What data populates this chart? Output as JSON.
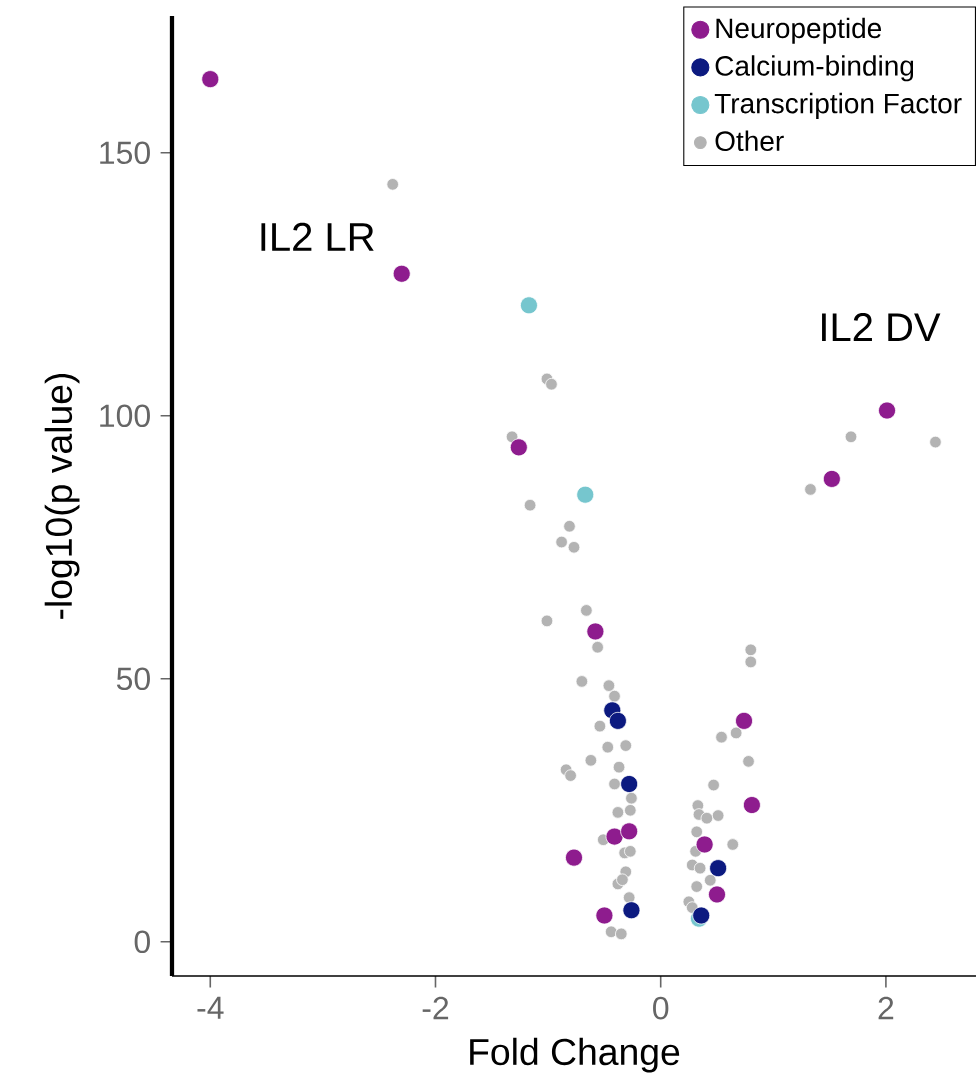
{
  "chart_data": {
    "type": "scatter",
    "xlabel": "Fold Change",
    "ylabel": "-log10(p value)",
    "xlim": [
      -4.34,
      2.8
    ],
    "ylim": [
      -6.5,
      176
    ],
    "xticks": [
      -4,
      -2,
      0,
      2
    ],
    "yticks": [
      0,
      50,
      100,
      150
    ],
    "grid": false,
    "legend": "top right",
    "marker": "circle",
    "annotations": [
      "IL2 LR",
      "IL2 DV"
    ],
    "series": [
      {
        "name": "Neuropeptide",
        "color": "#8e1c8e",
        "x": [
          -4.0,
          -2.3,
          -1.26,
          -0.58,
          0.74,
          0.81,
          -0.41,
          -0.28,
          -0.77,
          -0.5,
          0.39,
          0.5,
          2.01,
          1.52
        ],
        "values": [
          164,
          127,
          94,
          59,
          42,
          26,
          20,
          21,
          16,
          5,
          18.5,
          9,
          101,
          88
        ]
      },
      {
        "name": "Calcium-binding",
        "color": "#0c1a80",
        "x": [
          -0.43,
          -0.38,
          -0.28,
          -0.26,
          0.51,
          0.36
        ],
        "values": [
          44,
          42,
          30,
          6,
          14,
          5
        ]
      },
      {
        "name": "Transcription Factor",
        "color": "#76c6ce",
        "x": [
          -1.17,
          -0.67,
          0.34
        ],
        "values": [
          121,
          85,
          4.4
        ]
      },
      {
        "name": "Other",
        "color": "#b3b3b3",
        "x": [
          -2.38,
          -1.01,
          -0.97,
          -1.32,
          -1.16,
          -0.81,
          -0.88,
          -0.77,
          -0.66,
          -1.01,
          -0.56,
          -0.7,
          -0.46,
          -0.41,
          -0.54,
          -0.47,
          -0.31,
          -0.62,
          -0.84,
          -0.8,
          -0.37,
          -0.41,
          -0.26,
          -0.38,
          -0.27,
          -0.51,
          -0.32,
          -0.27,
          -0.31,
          -0.38,
          -0.34,
          -0.28,
          -0.44,
          -0.35,
          0.8,
          0.8,
          0.54,
          0.67,
          0.78,
          0.47,
          0.33,
          0.34,
          0.51,
          0.41,
          0.32,
          0.64,
          0.31,
          0.28,
          0.35,
          0.44,
          0.32,
          0.25,
          0.28,
          1.69,
          2.44,
          1.33
        ],
        "values": [
          144,
          107,
          106,
          96,
          83,
          79,
          76,
          75,
          63,
          61,
          56,
          49.5,
          48.7,
          46.7,
          41,
          37,
          37.3,
          34.5,
          32.7,
          31.6,
          33.2,
          30,
          27.3,
          24.6,
          25,
          19.4,
          16.9,
          17.2,
          13.3,
          11,
          11.8,
          8.4,
          1.9,
          1.5,
          55.5,
          53.2,
          38.9,
          39.7,
          34.3,
          29.8,
          25.9,
          24.2,
          24,
          23.5,
          20.9,
          18.5,
          17.2,
          14.6,
          14,
          11.7,
          10.5,
          7.6,
          6.5,
          96,
          95,
          86
        ]
      }
    ]
  }
}
